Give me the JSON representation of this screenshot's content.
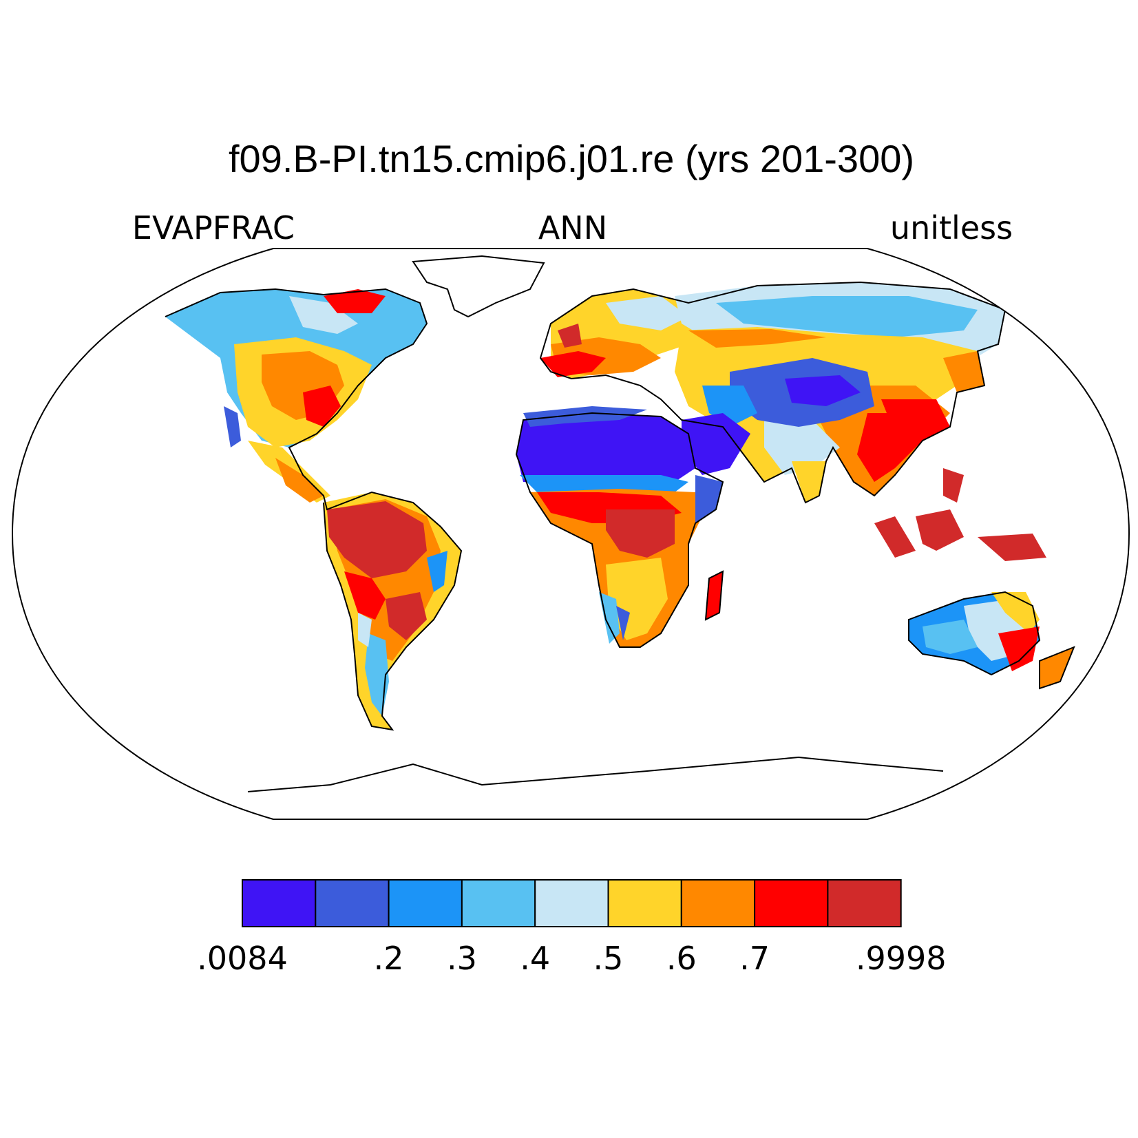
{
  "title": "f09.B-PI.tn15.cmip6.j01.re (yrs 201-300)",
  "left_label": "EVAPFRAC",
  "center_label": "ANN",
  "right_label": "unitless",
  "colorbar": {
    "colors": [
      "#3F14F5",
      "#3C5CDB",
      "#1C94F7",
      "#58C1F2",
      "#C8E6F5",
      "#FFD42A",
      "#FF8800",
      "#FF0000",
      "#D12A2A"
    ],
    "labels": [
      ".0084",
      "",
      ".2",
      ".3",
      ".4",
      ".5",
      ".6",
      ".7",
      "",
      ".9998"
    ]
  },
  "palette_index": {
    "very_low": 0,
    "low": 1,
    "low_mid": 2,
    "mid_low": 3,
    "mid": 4,
    "mid_high": 5,
    "high": 6,
    "very_high": 7,
    "max": 8
  }
}
